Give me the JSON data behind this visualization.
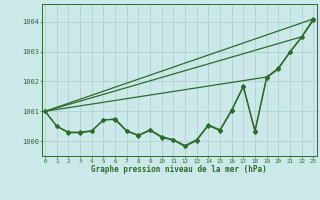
{
  "x": [
    0,
    1,
    2,
    3,
    4,
    5,
    6,
    7,
    8,
    9,
    10,
    11,
    12,
    13,
    14,
    15,
    16,
    17,
    18,
    19,
    20,
    21,
    22,
    23
  ],
  "line_main": [
    1001.0,
    1000.5,
    1000.3,
    1000.3,
    1000.35,
    1000.7,
    1000.75,
    1000.35,
    1000.2,
    1000.38,
    1000.15,
    1000.05,
    999.85,
    1000.05,
    1000.55,
    1000.38,
    1001.05,
    1001.85,
    1000.35,
    1002.15,
    1002.45,
    1003.0,
    1003.5,
    1004.1
  ],
  "line_smooth": [
    1001.0,
    1000.5,
    1000.28,
    1000.28,
    1000.33,
    1000.72,
    1000.72,
    1000.33,
    1000.18,
    1000.36,
    1000.12,
    1000.03,
    999.82,
    1000.02,
    1000.52,
    1000.35,
    1001.02,
    1001.82,
    1000.32,
    1002.12,
    1002.42,
    1002.98,
    1003.48,
    1004.05
  ],
  "trend1_x": [
    0,
    23
  ],
  "trend1_y": [
    1001.0,
    1004.1
  ],
  "trend2_x": [
    0,
    22
  ],
  "trend2_y": [
    1001.0,
    1003.5
  ],
  "trend3_x": [
    0,
    19
  ],
  "trend3_y": [
    1001.0,
    1002.15
  ],
  "background_color": "#cce8e8",
  "line_color": "#2d6b2d",
  "grid_color": "#aacece",
  "ylim": [
    999.5,
    1004.6
  ],
  "xlim": [
    -0.3,
    23.3
  ],
  "yticks": [
    1000,
    1001,
    1002,
    1003,
    1004
  ],
  "xticks": [
    0,
    1,
    2,
    3,
    4,
    5,
    6,
    7,
    8,
    9,
    10,
    11,
    12,
    13,
    14,
    15,
    16,
    17,
    18,
    19,
    20,
    21,
    22,
    23
  ],
  "xlabel": "Graphe pression niveau de la mer (hPa)",
  "marker": "D",
  "marker_size": 2.2,
  "linewidth": 0.9
}
